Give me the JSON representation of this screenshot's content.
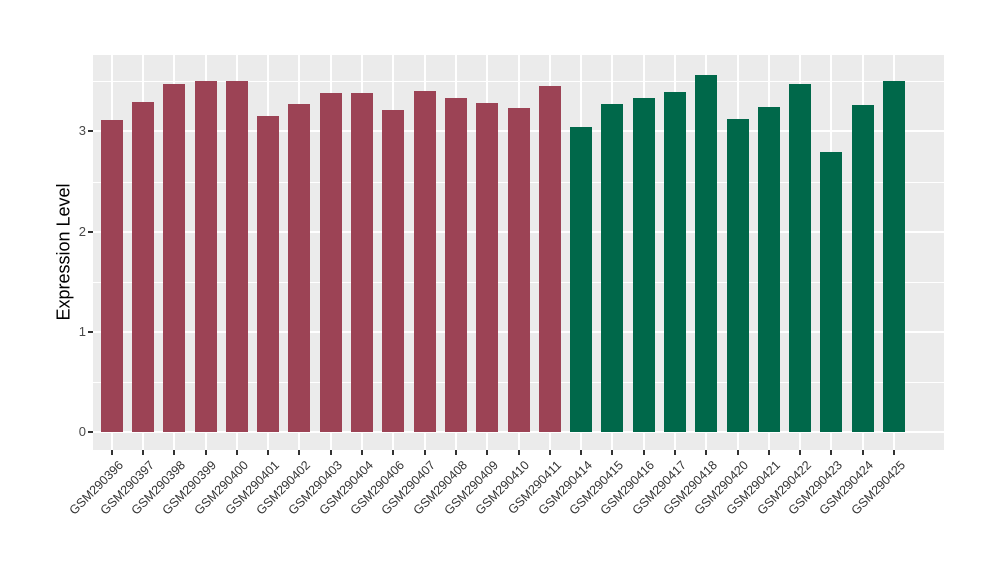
{
  "chart_data": {
    "type": "bar",
    "title": "",
    "xlabel": "",
    "ylabel": "Expression Level",
    "ylim": [
      -0.18,
      3.76
    ],
    "yticks": [
      0,
      1,
      2,
      3
    ],
    "ytick_labels": [
      "0",
      "1",
      "2",
      "3"
    ],
    "yminor": [
      0.5,
      1.5,
      2.5,
      3.5
    ],
    "grid": "on",
    "legend": "none",
    "panel_background": "#EBEBEB",
    "gridline_color": "#FFFFFF",
    "categories": [
      "GSM290396",
      "GSM290397",
      "GSM290398",
      "GSM290399",
      "GSM290400",
      "GSM290401",
      "GSM290402",
      "GSM290403",
      "GSM290404",
      "GSM290406",
      "GSM290407",
      "GSM290408",
      "GSM290409",
      "GSM290410",
      "GSM290411",
      "GSM290414",
      "GSM290415",
      "GSM290416",
      "GSM290417",
      "GSM290418",
      "GSM290420",
      "GSM290421",
      "GSM290422",
      "GSM290423",
      "GSM290424",
      "GSM290425"
    ],
    "values": [
      3.11,
      3.29,
      3.47,
      3.5,
      3.5,
      3.15,
      3.27,
      3.38,
      3.38,
      3.21,
      3.4,
      3.33,
      3.28,
      3.23,
      3.45,
      3.04,
      3.27,
      3.33,
      3.39,
      3.56,
      3.12,
      3.24,
      3.47,
      2.79,
      3.26,
      3.5
    ],
    "bar_colors": [
      "#9C4355",
      "#9C4355",
      "#9C4355",
      "#9C4355",
      "#9C4355",
      "#9C4355",
      "#9C4355",
      "#9C4355",
      "#9C4355",
      "#9C4355",
      "#9C4355",
      "#9C4355",
      "#9C4355",
      "#9C4355",
      "#9C4355",
      "#00684A",
      "#00684A",
      "#00684A",
      "#00684A",
      "#00684A",
      "#00684A",
      "#00684A",
      "#00684A",
      "#00684A",
      "#00684A",
      "#00684A"
    ],
    "color_groups": [
      {
        "color": "#9C4355",
        "first_sample": "GSM290396",
        "last_sample": "GSM290411"
      },
      {
        "color": "#00684A",
        "first_sample": "GSM290414",
        "last_sample": "GSM290425"
      }
    ]
  }
}
